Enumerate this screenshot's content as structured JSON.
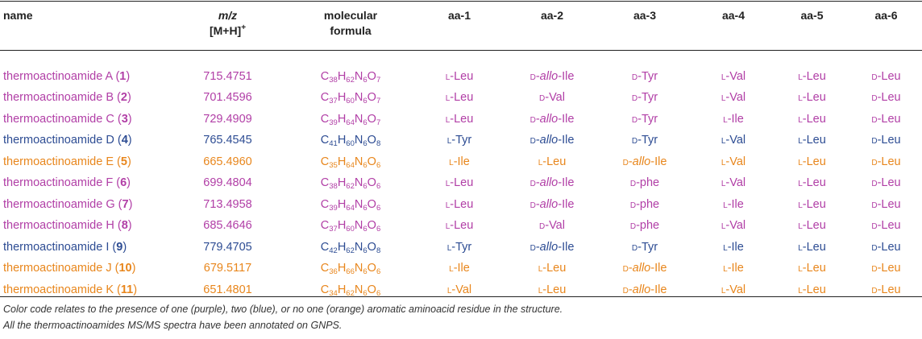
{
  "headers": {
    "name": "name",
    "mz_line1": "m/z",
    "mz_line2": "[M+H]",
    "mz_sup": "+",
    "formula_line1": "molecular",
    "formula_line2": "formula",
    "aa1": "aa-1",
    "aa2": "aa-2",
    "aa3": "aa-3",
    "aa4": "aa-4",
    "aa5": "aa-5",
    "aa6": "aa-6"
  },
  "colors": {
    "purple": "#b13ea6",
    "blue": "#2d4c93",
    "orange": "#e8861c"
  },
  "rows": [
    {
      "color": "purple",
      "name": "thermoactinoamide A",
      "num": "1",
      "mz": "715.4751",
      "formula": [
        [
          "C",
          "38"
        ],
        [
          "H",
          "62"
        ],
        [
          "N",
          "6"
        ],
        [
          "O",
          "7"
        ]
      ],
      "aa": [
        [
          "L",
          "-Leu"
        ],
        [
          "D",
          "-allo-Ile"
        ],
        [
          "D",
          "-Tyr"
        ],
        [
          "L",
          "-Val"
        ],
        [
          "L",
          "-Leu"
        ],
        [
          "D",
          "-Leu"
        ]
      ]
    },
    {
      "color": "purple",
      "name": "thermoactinoamide B",
      "num": "2",
      "mz": "701.4596",
      "formula": [
        [
          "C",
          "37"
        ],
        [
          "H",
          "60"
        ],
        [
          "N",
          "6"
        ],
        [
          "O",
          "7"
        ]
      ],
      "aa": [
        [
          "L",
          "-Leu"
        ],
        [
          "D",
          "-Val"
        ],
        [
          "D",
          "-Tyr"
        ],
        [
          "L",
          "-Val"
        ],
        [
          "L",
          "-Leu"
        ],
        [
          "D",
          "-Leu"
        ]
      ]
    },
    {
      "color": "purple",
      "name": "thermoactinoamide C",
      "num": "3",
      "mz": "729.4909",
      "formula": [
        [
          "C",
          "39"
        ],
        [
          "H",
          "64"
        ],
        [
          "N",
          "6"
        ],
        [
          "O",
          "7"
        ]
      ],
      "aa": [
        [
          "L",
          "-Leu"
        ],
        [
          "D",
          "-allo-Ile"
        ],
        [
          "D",
          "-Tyr"
        ],
        [
          "L",
          "-Ile"
        ],
        [
          "L",
          "-Leu"
        ],
        [
          "D",
          "-Leu"
        ]
      ]
    },
    {
      "color": "blue",
      "name": "thermoactinoamide D",
      "num": "4",
      "mz": "765.4545",
      "formula": [
        [
          "C",
          "41"
        ],
        [
          "H",
          "60"
        ],
        [
          "N",
          "6"
        ],
        [
          "O",
          "8"
        ]
      ],
      "aa": [
        [
          "L",
          "-Tyr"
        ],
        [
          "D",
          "-allo-Ile"
        ],
        [
          "D",
          "-Tyr"
        ],
        [
          "L",
          "-Val"
        ],
        [
          "L",
          "-Leu"
        ],
        [
          "D",
          "-Leu"
        ]
      ]
    },
    {
      "color": "orange",
      "name": "thermoactinoamide E",
      "num": "5",
      "mz": "665.4960",
      "formula": [
        [
          "C",
          "35"
        ],
        [
          "H",
          "64"
        ],
        [
          "N",
          "6"
        ],
        [
          "O",
          "6"
        ]
      ],
      "aa": [
        [
          "L",
          "-Ile"
        ],
        [
          "L",
          "-Leu"
        ],
        [
          "D",
          "-allo-Ile"
        ],
        [
          "L",
          "-Val"
        ],
        [
          "L",
          "-Leu"
        ],
        [
          "D",
          "-Leu"
        ]
      ]
    },
    {
      "color": "purple",
      "name": "thermoactinoamide F",
      "num": "6",
      "mz": "699.4804",
      "formula": [
        [
          "C",
          "38"
        ],
        [
          "H",
          "62"
        ],
        [
          "N",
          "6"
        ],
        [
          "O",
          "6"
        ]
      ],
      "aa": [
        [
          "L",
          "-Leu"
        ],
        [
          "D",
          "-allo-Ile"
        ],
        [
          "D",
          "-phe"
        ],
        [
          "L",
          "-Val"
        ],
        [
          "L",
          "-Leu"
        ],
        [
          "D",
          "-Leu"
        ]
      ]
    },
    {
      "color": "purple",
      "name": "thermoactinoamide G",
      "num": "7",
      "mz": "713.4958",
      "formula": [
        [
          "C",
          "39"
        ],
        [
          "H",
          "64"
        ],
        [
          "N",
          "6"
        ],
        [
          "O",
          "6"
        ]
      ],
      "aa": [
        [
          "L",
          "-Leu"
        ],
        [
          "D",
          "-allo-Ile"
        ],
        [
          "D",
          "-phe"
        ],
        [
          "L",
          "-Ile"
        ],
        [
          "L",
          "-Leu"
        ],
        [
          "D",
          "-Leu"
        ]
      ]
    },
    {
      "color": "purple",
      "name": "thermoactinoamide H",
      "num": "8",
      "mz": "685.4646",
      "formula": [
        [
          "C",
          "37"
        ],
        [
          "H",
          "60"
        ],
        [
          "N",
          "6"
        ],
        [
          "O",
          "6"
        ]
      ],
      "aa": [
        [
          "L",
          "-Leu"
        ],
        [
          "D",
          "-Val"
        ],
        [
          "D",
          "-phe"
        ],
        [
          "L",
          "-Val"
        ],
        [
          "L",
          "-Leu"
        ],
        [
          "D",
          "-Leu"
        ]
      ]
    },
    {
      "color": "blue",
      "name": "thermoactinoamide I",
      "num": "9",
      "mz": "779.4705",
      "formula": [
        [
          "C",
          "42"
        ],
        [
          "H",
          "62"
        ],
        [
          "N",
          "6"
        ],
        [
          "O",
          "8"
        ]
      ],
      "aa": [
        [
          "L",
          "-Tyr"
        ],
        [
          "D",
          "-allo-Ile"
        ],
        [
          "D",
          "-Tyr"
        ],
        [
          "L",
          "-Ile"
        ],
        [
          "L",
          "-Leu"
        ],
        [
          "D",
          "-Leu"
        ]
      ]
    },
    {
      "color": "orange",
      "name": "thermoactinoamide J",
      "num": "10",
      "mz": "679.5117",
      "formula": [
        [
          "C",
          "36"
        ],
        [
          "H",
          "66"
        ],
        [
          "N",
          "6"
        ],
        [
          "O",
          "6"
        ]
      ],
      "aa": [
        [
          "L",
          "-Ile"
        ],
        [
          "L",
          "-Leu"
        ],
        [
          "D",
          "-allo-Ile"
        ],
        [
          "L",
          "-Ile"
        ],
        [
          "L",
          "-Leu"
        ],
        [
          "D",
          "-Leu"
        ]
      ]
    },
    {
      "color": "orange",
      "name": "thermoactinoamide K",
      "num": "11",
      "mz": "651.4801",
      "formula": [
        [
          "C",
          "34"
        ],
        [
          "H",
          "62"
        ],
        [
          "N",
          "6"
        ],
        [
          "O",
          "6"
        ]
      ],
      "aa": [
        [
          "L",
          "-Val"
        ],
        [
          "L",
          "-Leu"
        ],
        [
          "D",
          "-allo-Ile"
        ],
        [
          "L",
          "-Val"
        ],
        [
          "L",
          "-Leu"
        ],
        [
          "D",
          "-Leu"
        ]
      ]
    }
  ],
  "notes": [
    "Color code relates to the presence of one (purple), two (blue), or no one (orange) aromatic aminoacid residue in the structure.",
    "All the thermoactinoamides MS/MS spectra have been annotated on GNPS."
  ]
}
